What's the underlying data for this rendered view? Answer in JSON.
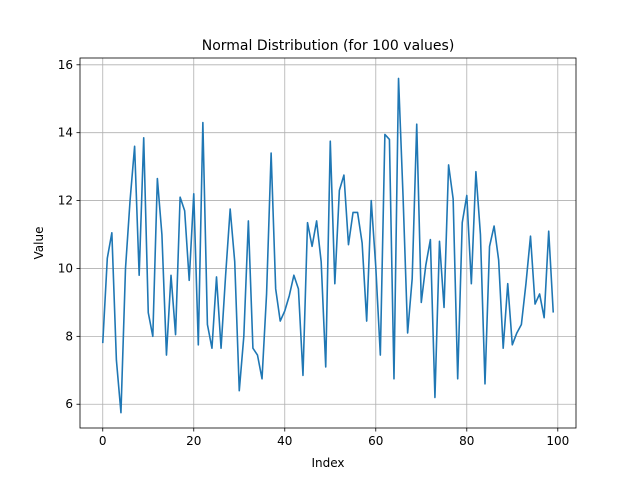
{
  "chart_data": {
    "type": "line",
    "title": "Normal Distribution (for 100 values)",
    "xlabel": "Index",
    "ylabel": "Value",
    "xlim": [
      -5,
      104
    ],
    "ylim": [
      5.3,
      16.2
    ],
    "xticks": [
      0,
      20,
      40,
      60,
      80,
      100
    ],
    "yticks": [
      6,
      8,
      10,
      12,
      14,
      16
    ],
    "grid": true,
    "line_color": "#1f77b4",
    "series": [
      {
        "x": [
          0,
          1,
          2,
          3,
          4,
          5,
          6,
          7,
          8,
          9,
          10,
          11,
          12,
          13,
          14,
          15,
          16,
          17,
          18,
          19,
          20,
          21,
          22,
          23,
          24,
          25,
          26,
          27,
          28,
          29,
          30,
          31,
          32,
          33,
          34,
          35,
          36,
          37,
          38,
          39,
          40,
          41,
          42,
          43,
          44,
          45,
          46,
          47,
          48,
          49,
          50,
          51,
          52,
          53,
          54,
          55,
          56,
          57,
          58,
          59,
          60,
          61,
          62,
          63,
          64,
          65,
          66,
          67,
          68,
          69,
          70,
          71,
          72,
          73,
          74,
          75,
          76,
          77,
          78,
          79,
          80,
          81,
          82,
          83,
          84,
          85,
          86,
          87,
          88,
          89,
          90,
          91,
          92,
          93,
          94,
          95,
          96,
          97,
          98,
          99
        ],
        "values": [
          7.8,
          10.3,
          11.05,
          7.3,
          5.75,
          10.0,
          12.0,
          13.6,
          9.8,
          13.85,
          8.7,
          8.0,
          12.65,
          11.0,
          7.45,
          9.8,
          8.05,
          12.1,
          11.7,
          9.65,
          12.2,
          7.75,
          14.3,
          8.35,
          7.65,
          9.75,
          7.65,
          9.8,
          11.75,
          10.2,
          6.4,
          8.0,
          11.4,
          7.65,
          7.45,
          6.75,
          9.25,
          13.4,
          9.4,
          8.45,
          8.75,
          9.2,
          9.8,
          9.4,
          6.85,
          11.35,
          10.65,
          11.4,
          10.2,
          7.1,
          13.75,
          9.55,
          12.3,
          12.75,
          10.7,
          11.65,
          11.65,
          10.75,
          8.45,
          12.0,
          10.05,
          7.45,
          13.95,
          13.8,
          6.75,
          15.6,
          12.1,
          8.1,
          9.7,
          14.25,
          9.0,
          10.1,
          10.85,
          6.2,
          10.8,
          8.85,
          13.05,
          12.05,
          6.75,
          11.35,
          12.15,
          9.55,
          12.85,
          11.0,
          6.6,
          10.65,
          11.25,
          10.25,
          7.65,
          9.55,
          7.75,
          8.1,
          8.35,
          9.55,
          10.95,
          8.95,
          9.25,
          8.55,
          11.1,
          8.7
        ]
      }
    ]
  }
}
